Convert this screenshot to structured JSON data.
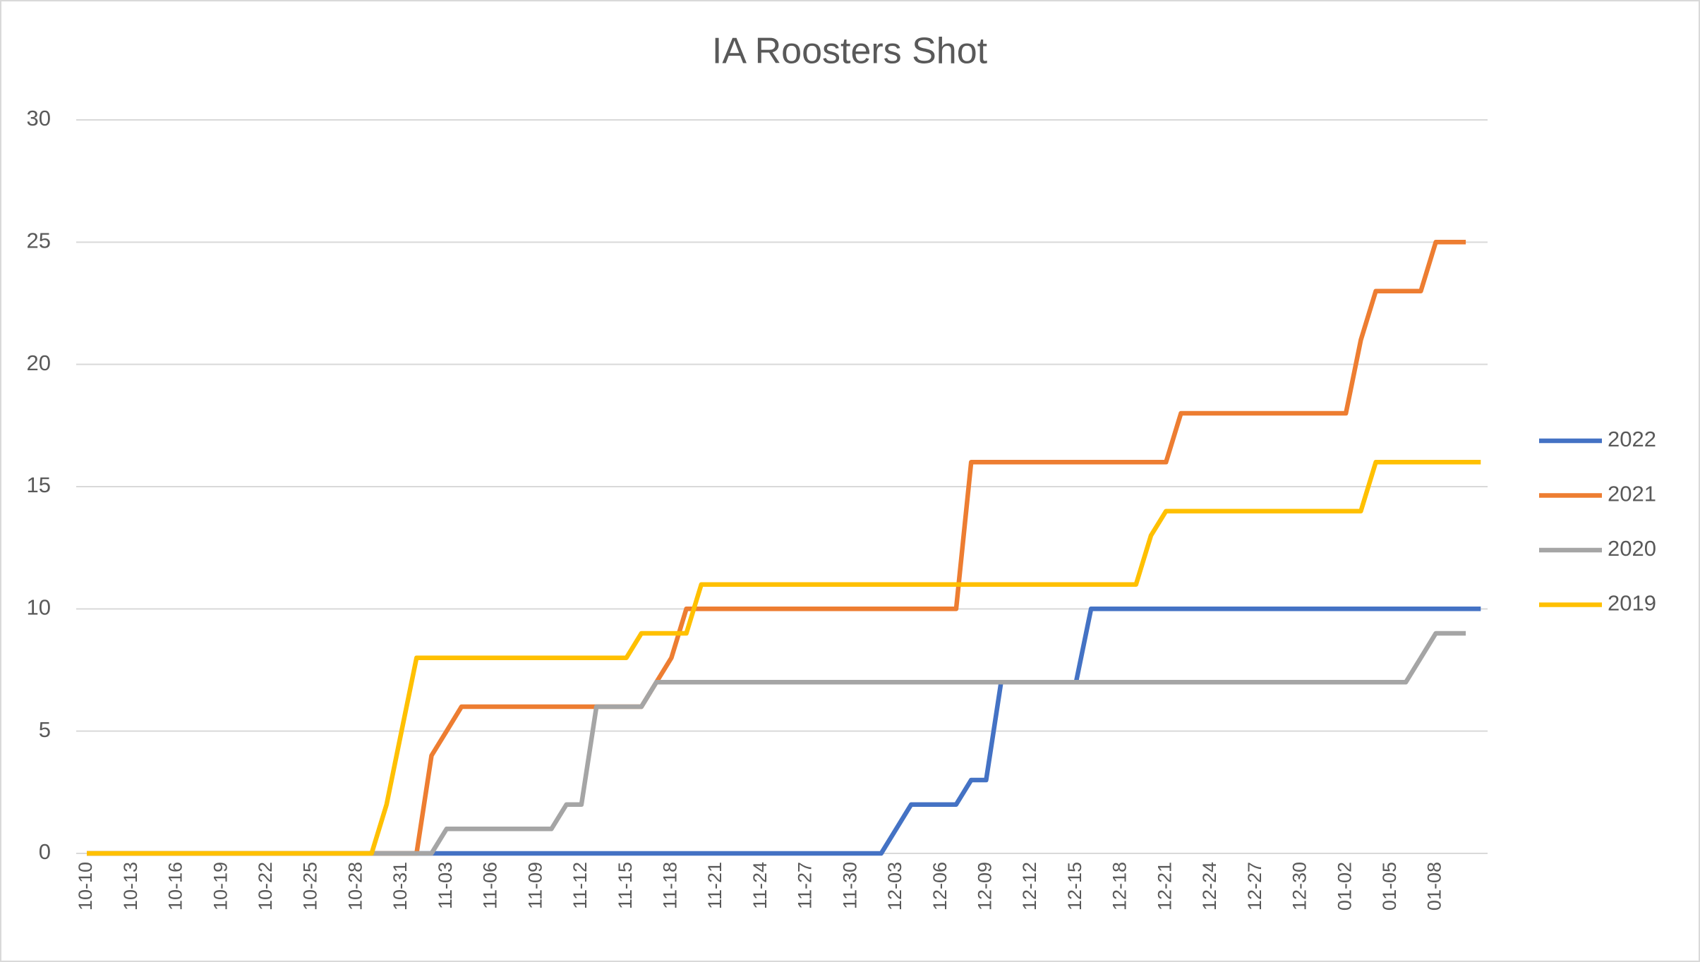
{
  "chart_data": {
    "type": "line",
    "title": "IA Roosters Shot",
    "categories": [
      "10-10",
      null,
      null,
      "10-13",
      null,
      null,
      "10-16",
      null,
      null,
      "10-19",
      null,
      null,
      "10-22",
      null,
      null,
      "10-25",
      null,
      null,
      "10-28",
      null,
      null,
      "10-31",
      null,
      null,
      "11-03",
      null,
      null,
      "11-06",
      null,
      null,
      "11-09",
      null,
      null,
      "11-12",
      null,
      null,
      "11-15",
      null,
      null,
      "11-18",
      null,
      null,
      "11-21",
      null,
      null,
      "11-24",
      null,
      null,
      "11-27",
      null,
      null,
      "11-30",
      null,
      null,
      "12-03",
      null,
      null,
      "12-06",
      null,
      null,
      "12-09",
      null,
      null,
      "12-12",
      null,
      null,
      "12-15",
      null,
      null,
      "12-18",
      null,
      null,
      "12-21",
      null,
      null,
      "12-24",
      null,
      null,
      "12-27",
      null,
      null,
      "12-30",
      null,
      null,
      "01-02",
      null,
      null,
      "01-05",
      null,
      null,
      "01-08",
      null,
      null,
      null
    ],
    "series": [
      {
        "name": "2022",
        "color": "#4472c4",
        "values": [
          0,
          0,
          0,
          0,
          0,
          0,
          0,
          0,
          0,
          0,
          0,
          0,
          0,
          0,
          0,
          0,
          0,
          0,
          0,
          0,
          0,
          0,
          0,
          0,
          0,
          0,
          0,
          0,
          0,
          0,
          0,
          0,
          0,
          0,
          0,
          0,
          0,
          0,
          0,
          0,
          0,
          0,
          0,
          0,
          0,
          0,
          0,
          0,
          0,
          0,
          0,
          0,
          0,
          0,
          1,
          2,
          2,
          2,
          2,
          3,
          3,
          7,
          7,
          7,
          7,
          7,
          7,
          10,
          10,
          10,
          10,
          10,
          10,
          10,
          10,
          10,
          10,
          10,
          10,
          10,
          10,
          10,
          10,
          10,
          10,
          10,
          10,
          10,
          10,
          10,
          10,
          10,
          10,
          10
        ]
      },
      {
        "name": "2021",
        "color": "#ed7d31",
        "values": [
          0,
          0,
          0,
          0,
          0,
          0,
          0,
          0,
          0,
          0,
          0,
          0,
          0,
          0,
          0,
          0,
          0,
          0,
          0,
          0,
          0,
          0,
          0,
          4,
          5,
          6,
          6,
          6,
          6,
          6,
          6,
          6,
          6,
          6,
          6,
          6,
          6,
          6,
          7,
          8,
          10,
          10,
          10,
          10,
          10,
          10,
          10,
          10,
          10,
          10,
          10,
          10,
          10,
          10,
          10,
          10,
          10,
          10,
          10,
          16,
          16,
          16,
          16,
          16,
          16,
          16,
          16,
          16,
          16,
          16,
          16,
          16,
          16,
          18,
          18,
          18,
          18,
          18,
          18,
          18,
          18,
          18,
          18,
          18,
          18,
          21,
          23,
          23,
          23,
          23,
          25,
          25,
          25,
          null
        ]
      },
      {
        "name": "2020",
        "color": "#a5a5a5",
        "values": [
          0,
          0,
          0,
          0,
          0,
          0,
          0,
          0,
          0,
          0,
          0,
          0,
          0,
          0,
          0,
          0,
          0,
          0,
          0,
          0,
          0,
          0,
          0,
          0,
          1,
          1,
          1,
          1,
          1,
          1,
          1,
          1,
          2,
          2,
          6,
          6,
          6,
          6,
          7,
          7,
          7,
          7,
          7,
          7,
          7,
          7,
          7,
          7,
          7,
          7,
          7,
          7,
          7,
          7,
          7,
          7,
          7,
          7,
          7,
          7,
          7,
          7,
          7,
          7,
          7,
          7,
          7,
          7,
          7,
          7,
          7,
          7,
          7,
          7,
          7,
          7,
          7,
          7,
          7,
          7,
          7,
          7,
          7,
          7,
          7,
          7,
          7,
          7,
          7,
          8,
          9,
          9,
          9,
          null
        ]
      },
      {
        "name": "2019",
        "color": "#ffc000",
        "values": [
          0,
          0,
          0,
          0,
          0,
          0,
          0,
          0,
          0,
          0,
          0,
          0,
          0,
          0,
          0,
          0,
          0,
          0,
          0,
          0,
          2,
          5,
          8,
          8,
          8,
          8,
          8,
          8,
          8,
          8,
          8,
          8,
          8,
          8,
          8,
          8,
          8,
          9,
          9,
          9,
          9,
          11,
          11,
          11,
          11,
          11,
          11,
          11,
          11,
          11,
          11,
          11,
          11,
          11,
          11,
          11,
          11,
          11,
          11,
          11,
          11,
          11,
          11,
          11,
          11,
          11,
          11,
          11,
          11,
          11,
          11,
          13,
          14,
          14,
          14,
          14,
          14,
          14,
          14,
          14,
          14,
          14,
          14,
          14,
          14,
          14,
          16,
          16,
          16,
          16,
          16,
          16,
          16,
          16
        ]
      }
    ],
    "ylim": [
      0,
      30
    ],
    "yticks": [
      0,
      5,
      10,
      15,
      20,
      25,
      30
    ],
    "grid": true,
    "legend": "right"
  }
}
